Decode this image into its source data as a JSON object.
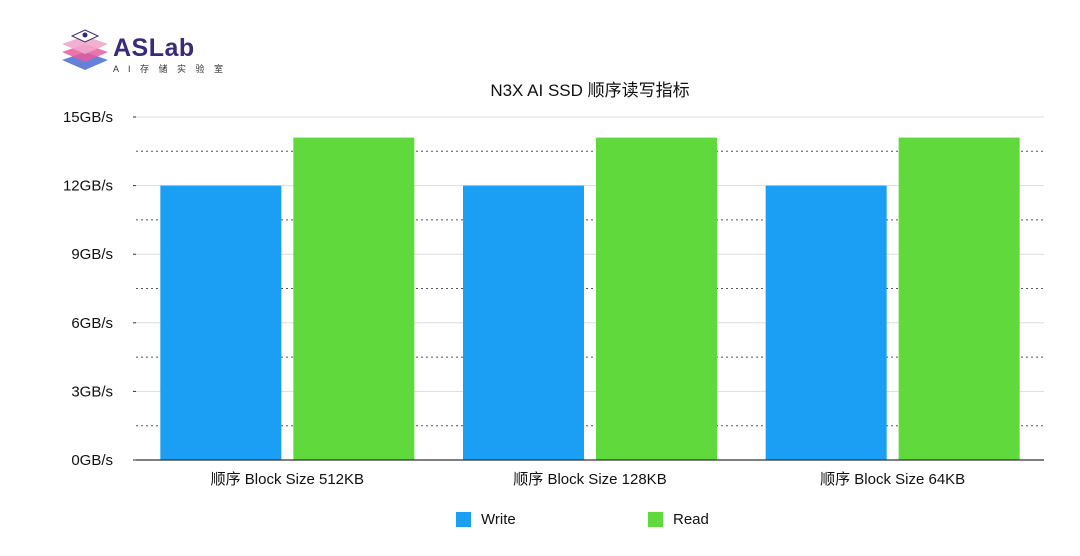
{
  "logo": {
    "name": "ASLab",
    "subtitle": "A I 存 储 实 验 室",
    "colors": {
      "purple": "#3b2a7a",
      "pink": "#e85c9e",
      "blue": "#4a6cd4"
    }
  },
  "chart_data": {
    "type": "bar",
    "title": "N3X AI SSD 顺序读写指标",
    "categories": [
      "顺序 Block Size 512KB",
      "顺序 Block Size 128KB",
      "顺序 Block Size 64KB"
    ],
    "series": [
      {
        "name": "Write",
        "values": [
          12,
          12,
          12
        ],
        "color": "#1a9ff5"
      },
      {
        "name": "Read",
        "values": [
          14.1,
          14.1,
          14.1
        ],
        "color": "#5fd93b"
      }
    ],
    "ylim": [
      0,
      15
    ],
    "yticks": [
      0,
      3,
      6,
      9,
      12,
      15
    ],
    "ytick_labels": [
      "0GB/s",
      "3GB/s",
      "6GB/s",
      "9GB/s",
      "12GB/s",
      "15GB/s"
    ],
    "xlabel": "",
    "ylabel": "",
    "grid": true,
    "legend": "bottom-center"
  }
}
